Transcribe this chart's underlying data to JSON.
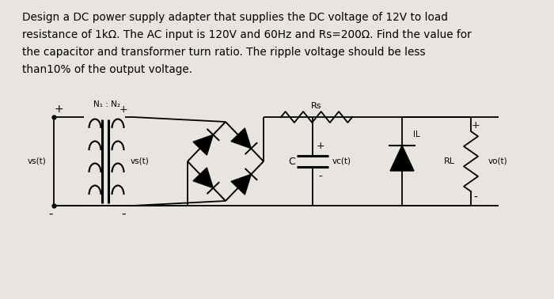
{
  "background_color": "#e8e4df",
  "text_lines": [
    "Design a DC power supply adapter that supplies the DC voltage of 12V to load",
    "resistance of 1kΩ. The AC input is 120V and 60Hz and Rs=200Ω. Find the value for",
    "the capacitor and transformer turn ratio. The ripple voltage should be less",
    "than10% of the output voltage."
  ],
  "fig_width": 7.0,
  "fig_height": 3.78
}
